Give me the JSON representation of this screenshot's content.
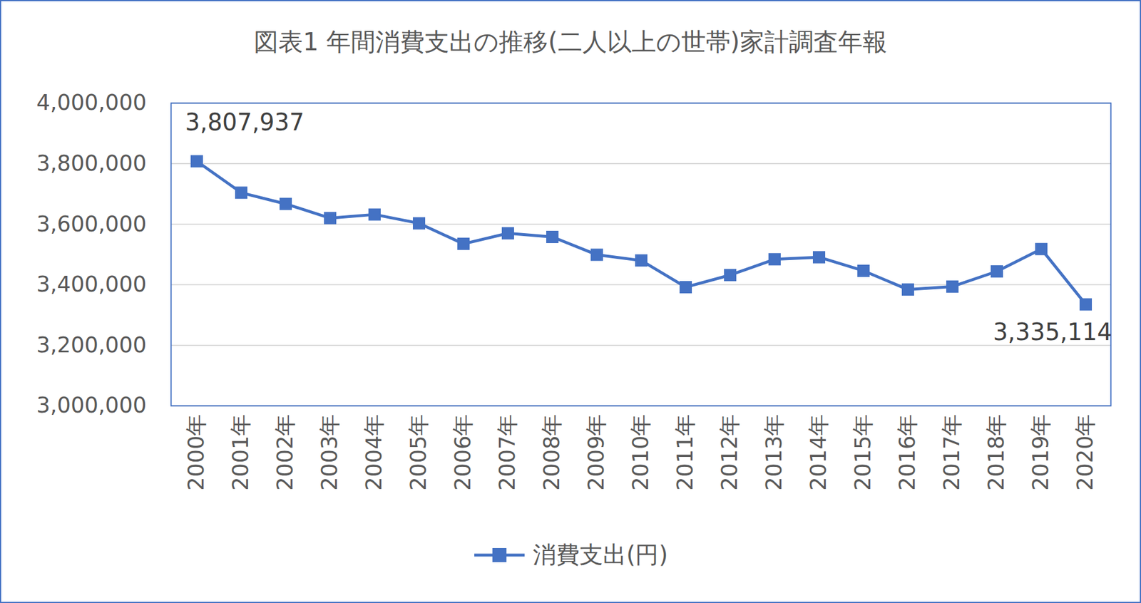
{
  "chart_data": {
    "type": "line",
    "title": "図表1 年間消費支出の推移(二人以上の世帯)家計調査年報",
    "categories": [
      "2000年",
      "2001年",
      "2002年",
      "2003年",
      "2004年",
      "2005年",
      "2006年",
      "2007年",
      "2008年",
      "2009年",
      "2010年",
      "2011年",
      "2012年",
      "2013年",
      "2014年",
      "2015年",
      "2016年",
      "2017年",
      "2018年",
      "2019年",
      "2020年"
    ],
    "series": [
      {
        "name": "消費支出(円)",
        "color": "#4472c4",
        "marker": "square",
        "line_style": "solid",
        "values": [
          3807937,
          3704000,
          3667000,
          3620000,
          3632000,
          3603000,
          3535000,
          3570000,
          3558000,
          3499000,
          3480000,
          3392000,
          3432000,
          3484000,
          3491000,
          3446000,
          3384000,
          3394000,
          3444000,
          3518000,
          3335114
        ]
      }
    ],
    "ylim": [
      3000000,
      4000000
    ],
    "yticks": [
      {
        "value": 3000000,
        "label": "3,000,000"
      },
      {
        "value": 3200000,
        "label": "3,200,000"
      },
      {
        "value": 3400000,
        "label": "3,400,000"
      },
      {
        "value": 3600000,
        "label": "3,600,000"
      },
      {
        "value": 3800000,
        "label": "3,800,000"
      },
      {
        "value": 4000000,
        "label": "4,000,000"
      }
    ],
    "grid": true,
    "legend": "bottom",
    "annotations": [
      {
        "category": "2000年",
        "value": 3807937,
        "label": "3,807,937"
      },
      {
        "category": "2020年",
        "value": 3335114,
        "label": "3,335,114"
      }
    ]
  }
}
